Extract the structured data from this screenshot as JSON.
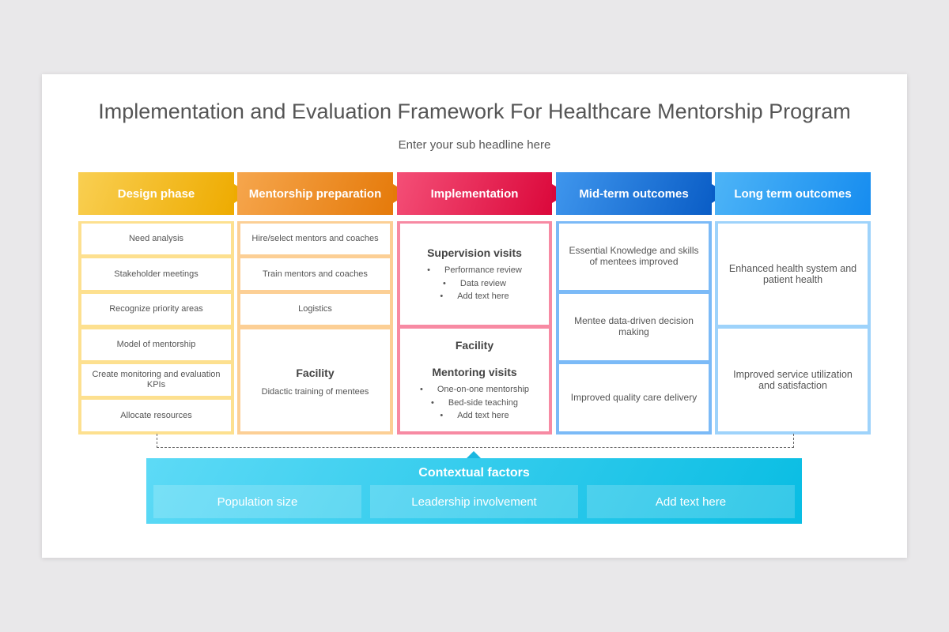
{
  "title": "Implementation and Evaluation Framework For Healthcare Mentorship Program",
  "subtitle": "Enter your sub headline here",
  "columns": [
    {
      "header": "Design phase",
      "colors": {
        "from": "#f9cf52",
        "to": "#eeab00",
        "border": "#fde08f"
      },
      "boxes": [
        {
          "text": "Need analysis"
        },
        {
          "text": "Stakeholder meetings"
        },
        {
          "text": "Recognize priority areas"
        },
        {
          "text": "Model of mentorship"
        },
        {
          "text": "Create monitoring and evaluation KPIs"
        },
        {
          "text": "Allocate resources"
        }
      ]
    },
    {
      "header": "Mentorship preparation",
      "colors": {
        "from": "#f6a64d",
        "to": "#e57a0a",
        "border": "#fccf95"
      },
      "boxes": [
        {
          "text": "Hire/select mentors and coaches"
        },
        {
          "text": "Train mentors and coaches"
        },
        {
          "text": "Logistics"
        },
        {
          "heading": "Facility",
          "text": "Didactic training of mentees"
        }
      ]
    },
    {
      "header": "Implementation",
      "colors": {
        "from": "#f44f77",
        "to": "#db083b",
        "border": "#f78aa3"
      },
      "boxes": [
        {
          "heading": "Supervision visits",
          "bullets": [
            "Performance review",
            "Data review",
            "Add text here"
          ]
        },
        {
          "heading": "Facility",
          "heading2": "Mentoring visits",
          "bullets": [
            "One-on-one mentorship",
            "Bed-side teaching",
            "Add text here"
          ]
        }
      ]
    },
    {
      "header": "Mid-term outcomes",
      "colors": {
        "from": "#3f96ed",
        "to": "#0a5dc6",
        "border": "#7bbaf7"
      },
      "boxes": [
        {
          "text": "Essential Knowledge and skills of mentees improved"
        },
        {
          "text": "Mentee data-driven decision making"
        },
        {
          "text": "Improved quality care delivery"
        }
      ]
    },
    {
      "header": "Long term outcomes",
      "colors": {
        "from": "#4db4f7",
        "to": "#168cef",
        "border": "#9ed3fb"
      },
      "boxes": [
        {
          "text": "Enhanced health system and patient health"
        },
        {
          "text": "Improved service utilization and satisfaction"
        }
      ]
    }
  ],
  "context": {
    "title": "Contextual factors",
    "items": [
      "Population size",
      "Leadership involvement",
      "Add text here"
    ]
  }
}
